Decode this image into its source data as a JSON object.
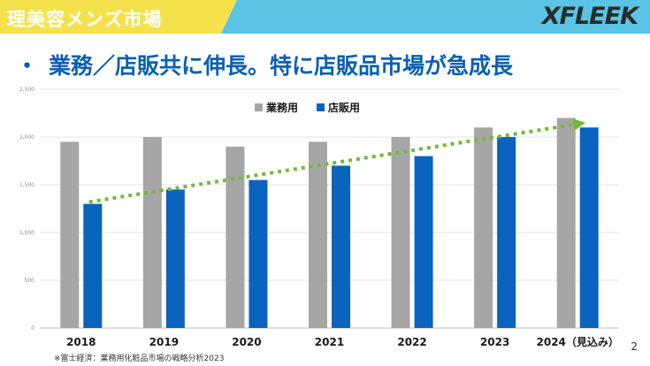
{
  "header": {
    "section_title": "理美容メンズ市場",
    "brand_logo": "XFLEEK",
    "band_colors": {
      "left": "#f5e14b",
      "right": "#5bc3e6"
    }
  },
  "headline": {
    "bullet": "・",
    "text": "業務／店販共に伸長。特に店販品市場が急成長"
  },
  "chart_data": {
    "type": "bar",
    "categories": [
      "2018",
      "2019",
      "2020",
      "2021",
      "2022",
      "2023",
      "2024（見込み）"
    ],
    "series": [
      {
        "name": "業務用",
        "color": "#a6a6a6",
        "values": [
          1950,
          2000,
          1900,
          1950,
          2000,
          2100,
          2200
        ]
      },
      {
        "name": "店販用",
        "color": "#0a64be",
        "values": [
          1300,
          1450,
          1550,
          1700,
          1800,
          2000,
          2100
        ]
      }
    ],
    "ylim": [
      0,
      2500
    ],
    "yticks": [
      "0",
      "500",
      "1,000",
      "1,500",
      "2,000",
      "2,500"
    ],
    "grid": true,
    "legend": "top-center",
    "trend_arrow": {
      "color": "#76b83a",
      "style": "dotted",
      "from_value": 1320,
      "to_value": 2150
    }
  },
  "footer": {
    "source": "※富士経済：業務用化粧品市場の戦略分析2023",
    "page_number": "2"
  }
}
